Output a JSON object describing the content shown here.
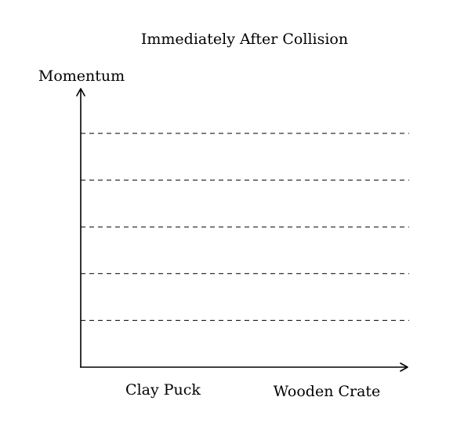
{
  "chart_data": {
    "type": "bar",
    "title": "Immediately After Collision",
    "xlabel": "",
    "ylabel": "Momentum",
    "categories": [
      "Clay Puck",
      "Wooden Crate"
    ],
    "values": [
      null,
      null
    ],
    "grid": {
      "horizontal": true,
      "style": "dashed",
      "line_count": 5
    },
    "tick_labels_shown": false,
    "legend": "none",
    "colors": {
      "axis": "#000000",
      "grid": "#000000",
      "text": "#000000"
    }
  }
}
